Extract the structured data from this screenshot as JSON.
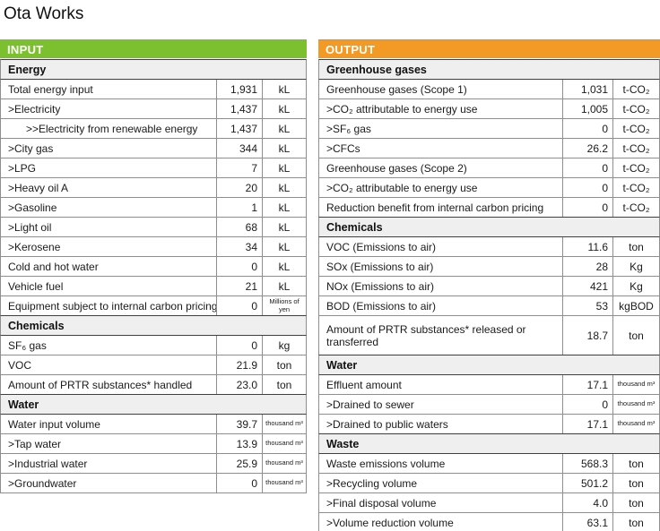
{
  "page_title": "Ota Works",
  "colors": {
    "input_header_bg": "#7cc02f",
    "output_header_bg": "#f39a26",
    "section_bg": "#efefef",
    "row_border": "#8e8e8e",
    "section_border": "#3f3f3f"
  },
  "input": {
    "header_label": "INPUT",
    "rows": [
      {
        "type": "section",
        "label": "Energy"
      },
      {
        "type": "data",
        "label": "Total energy input",
        "value": "1,931",
        "unit": "kL"
      },
      {
        "type": "data",
        "label": ">Electricity",
        "value": "1,437",
        "unit": "kL"
      },
      {
        "type": "data",
        "label": ">>Electricity from renewable energy",
        "value": "1,437",
        "unit": "kL"
      },
      {
        "type": "data",
        "label": ">City gas",
        "value": "344",
        "unit": "kL"
      },
      {
        "type": "data",
        "label": ">LPG",
        "value": "7",
        "unit": "kL"
      },
      {
        "type": "data",
        "label": ">Heavy oil A",
        "value": "20",
        "unit": "kL"
      },
      {
        "type": "data",
        "label": ">Gasoline",
        "value": "1",
        "unit": "kL"
      },
      {
        "type": "data",
        "label": ">Light oil",
        "value": "68",
        "unit": "kL"
      },
      {
        "type": "data",
        "label": ">Kerosene",
        "value": "34",
        "unit": "kL"
      },
      {
        "type": "data",
        "label": "Cold and hot water",
        "value": "0",
        "unit": "kL"
      },
      {
        "type": "data",
        "label": "Vehicle fuel",
        "value": "21",
        "unit": "kL"
      },
      {
        "type": "data",
        "label": "Equipment subject to internal carbon pricing",
        "value": "0",
        "unit": "Millions of yen"
      },
      {
        "type": "section",
        "label": "Chemicals"
      },
      {
        "type": "data",
        "label": "SF₆ gas",
        "value": "0",
        "unit": "kg"
      },
      {
        "type": "data",
        "label": "VOC",
        "value": "21.9",
        "unit": "ton"
      },
      {
        "type": "data",
        "label": "Amount of PRTR substances* handled",
        "value": "23.0",
        "unit": "ton"
      },
      {
        "type": "section",
        "label": "Water"
      },
      {
        "type": "data",
        "label": "Water input volume",
        "value": "39.7",
        "unit": "thousand m³"
      },
      {
        "type": "data",
        "label": ">Tap water",
        "value": "13.9",
        "unit": "thousand m³"
      },
      {
        "type": "data",
        "label": ">Industrial water",
        "value": "25.9",
        "unit": "thousand m³"
      },
      {
        "type": "data",
        "label": ">Groundwater",
        "value": "0",
        "unit": "thousand m³"
      }
    ]
  },
  "output": {
    "header_label": "OUTPUT",
    "rows": [
      {
        "type": "section",
        "label": "Greenhouse gases"
      },
      {
        "type": "data",
        "label": "Greenhouse gases (Scope 1)",
        "value": "1,031",
        "unit": "t-CO₂"
      },
      {
        "type": "data",
        "label": ">CO₂ attributable to energy use",
        "value": "1,005",
        "unit": "t-CO₂"
      },
      {
        "type": "data",
        "label": ">SF₆ gas",
        "value": "0",
        "unit": "t-CO₂"
      },
      {
        "type": "data",
        "label": ">CFCs",
        "value": "26.2",
        "unit": "t-CO₂"
      },
      {
        "type": "data",
        "label": "Greenhouse gases (Scope 2)",
        "value": "0",
        "unit": "t-CO₂"
      },
      {
        "type": "data",
        "label": ">CO₂ attributable to energy use",
        "value": "0",
        "unit": "t-CO₂"
      },
      {
        "type": "data",
        "label": "Reduction benefit from internal carbon pricing",
        "value": "0",
        "unit": "t-CO₂"
      },
      {
        "type": "section",
        "label": "Chemicals"
      },
      {
        "type": "data",
        "label": "VOC (Emissions to air)",
        "value": "11.6",
        "unit": "ton"
      },
      {
        "type": "data",
        "label": "SOx (Emissions to air)",
        "value": "28",
        "unit": "Kg"
      },
      {
        "type": "data",
        "label": "NOx (Emissions to air)",
        "value": "421",
        "unit": "Kg"
      },
      {
        "type": "data",
        "label": "BOD (Emissions to air)",
        "value": "53",
        "unit": "kgBOD"
      },
      {
        "type": "data",
        "label": "Amount of PRTR substances* released or transferred",
        "value": "18.7",
        "unit": "ton"
      },
      {
        "type": "section",
        "label": "Water"
      },
      {
        "type": "data",
        "label": "Effluent amount",
        "value": "17.1",
        "unit": "thousand m³"
      },
      {
        "type": "data",
        "label": ">Drained to sewer",
        "value": "0",
        "unit": "thousand m³"
      },
      {
        "type": "data",
        "label": ">Drained to public waters",
        "value": "17.1",
        "unit": "thousand m³"
      },
      {
        "type": "section",
        "label": "Waste"
      },
      {
        "type": "data",
        "label": "Waste emissions volume",
        "value": "568.3",
        "unit": "ton"
      },
      {
        "type": "data",
        "label": ">Recycling volume",
        "value": "501.2",
        "unit": "ton"
      },
      {
        "type": "data",
        "label": ">Final disposal volume",
        "value": "4.0",
        "unit": "ton"
      },
      {
        "type": "data",
        "label": ">Volume reduction volume",
        "value": "63.1",
        "unit": "ton"
      }
    ]
  }
}
